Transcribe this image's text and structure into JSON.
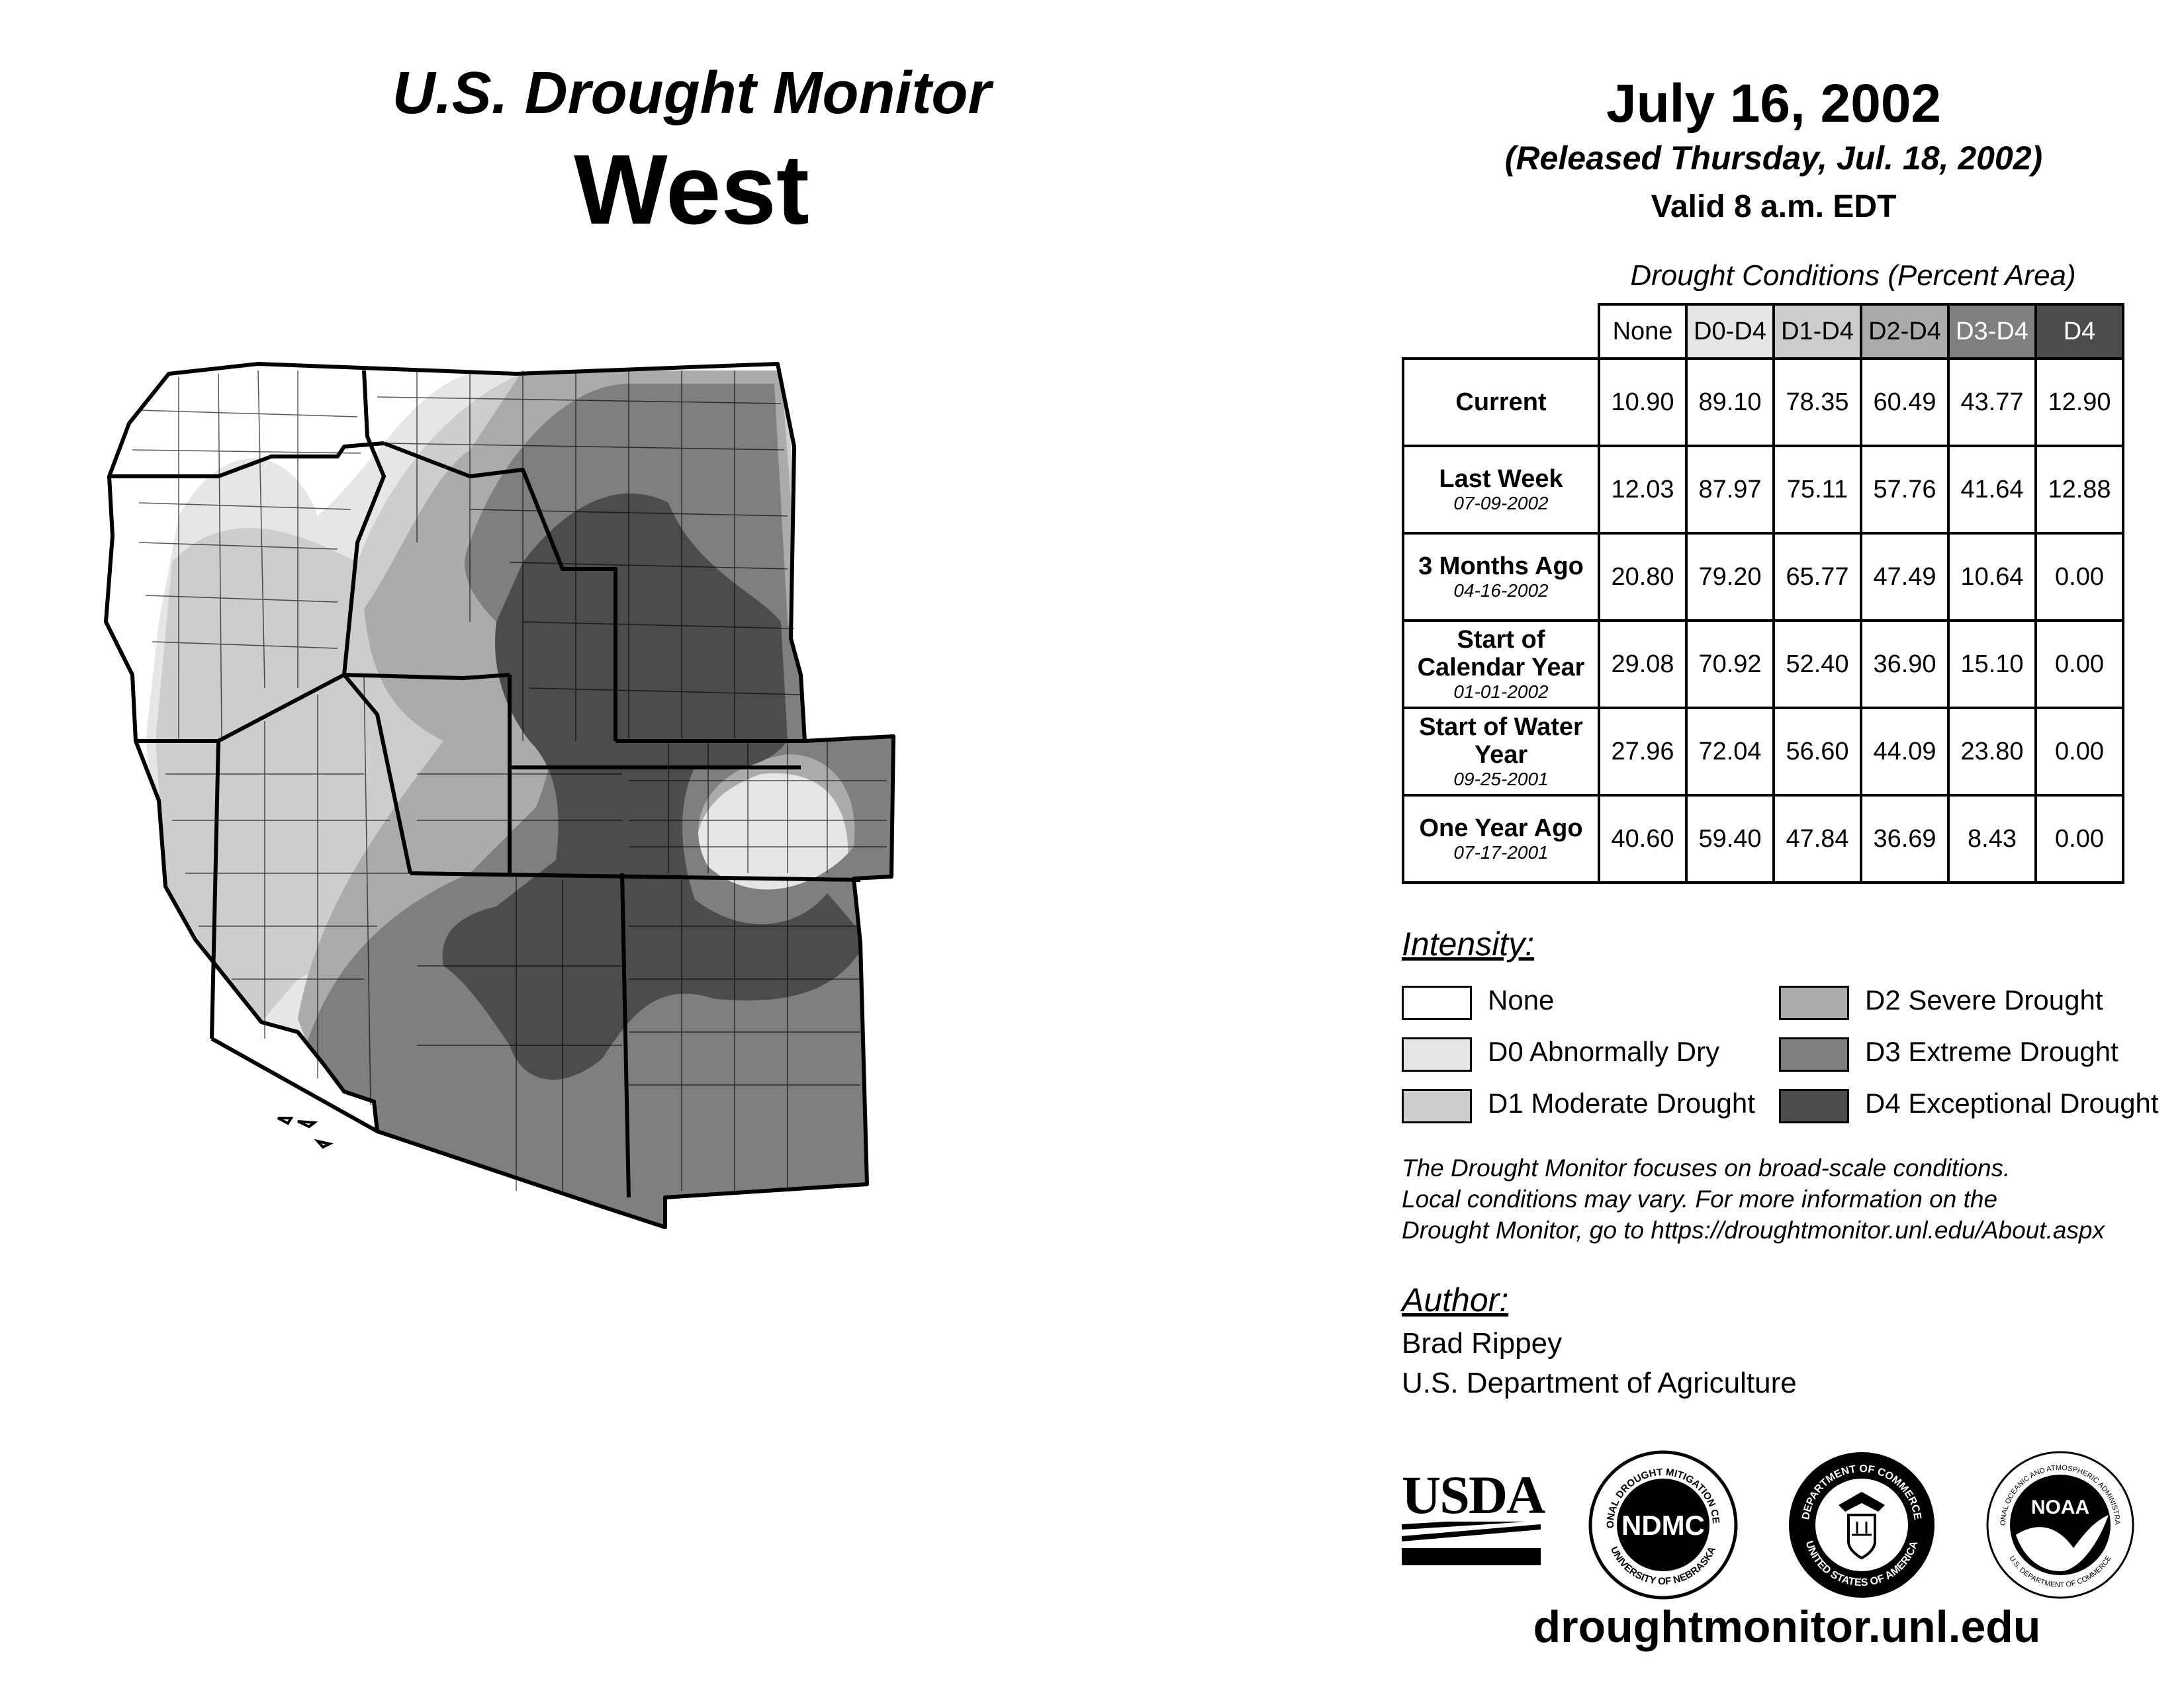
{
  "header": {
    "title": "U.S. Drought Monitor",
    "region": "West",
    "date": "July 16, 2002",
    "released": "(Released Thursday, Jul. 18, 2002)",
    "valid": "Valid 8 a.m. EDT"
  },
  "stats": {
    "title": "Drought Conditions (Percent Area)",
    "columns": [
      "None",
      "D0-D4",
      "D1-D4",
      "D2-D4",
      "D3-D4",
      "D4"
    ],
    "rows": [
      {
        "label": "Current",
        "date": "",
        "values": [
          "10.90",
          "89.10",
          "78.35",
          "60.49",
          "43.77",
          "12.90"
        ]
      },
      {
        "label": "Last Week",
        "date": "07-09-2002",
        "values": [
          "12.03",
          "87.97",
          "75.11",
          "57.76",
          "41.64",
          "12.88"
        ]
      },
      {
        "label": "3 Months Ago",
        "date": "04-16-2002",
        "values": [
          "20.80",
          "79.20",
          "65.77",
          "47.49",
          "10.64",
          "0.00"
        ]
      },
      {
        "label": "Start of Calendar Year",
        "date": "01-01-2002",
        "values": [
          "29.08",
          "70.92",
          "52.40",
          "36.90",
          "15.10",
          "0.00"
        ]
      },
      {
        "label": "Start of Water Year",
        "date": "09-25-2001",
        "values": [
          "27.96",
          "72.04",
          "56.60",
          "44.09",
          "23.80",
          "0.00"
        ]
      },
      {
        "label": "One Year Ago",
        "date": "07-17-2001",
        "values": [
          "40.60",
          "59.40",
          "47.84",
          "36.69",
          "8.43",
          "0.00"
        ]
      }
    ]
  },
  "legend": {
    "title": "Intensity:",
    "items": [
      {
        "label": "None",
        "color": "#ffffff"
      },
      {
        "label": "D0 Abnormally Dry",
        "color": "#e6e6e6"
      },
      {
        "label": "D1 Moderate Drought",
        "color": "#cdcdcd"
      },
      {
        "label": "D2 Severe Drought",
        "color": "#ababab"
      },
      {
        "label": "D3 Extreme Drought",
        "color": "#7f7f7f"
      },
      {
        "label": "D4 Exceptional Drought",
        "color": "#4c4c4c"
      }
    ]
  },
  "note": {
    "line1": "The Drought Monitor focuses on broad-scale conditions.",
    "line2": "Local conditions may vary. For more information on the",
    "line3": "Drought Monitor, go to https://droughtmonitor.unl.edu/About.aspx"
  },
  "author": {
    "heading": "Author:",
    "name": "Brad Rippey",
    "org": "U.S. Department of Agriculture"
  },
  "logos": {
    "usda": "USDA",
    "ndmc": "NDMC",
    "ndmc_ring_top": "NATIONAL DROUGHT MITIGATION CENTER",
    "ndmc_ring_bottom": "UNIVERSITY OF NEBRASKA",
    "doc_ring_top": "DEPARTMENT OF COMMERCE",
    "doc_ring_bottom": "UNITED STATES OF AMERICA",
    "noaa": "NOAA",
    "noaa_ring_top": "NATIONAL OCEANIC AND ATMOSPHERIC ADMINISTRATION",
    "noaa_ring_bottom": "U.S. DEPARTMENT OF COMMERCE"
  },
  "website": "droughtmonitor.unl.edu"
}
